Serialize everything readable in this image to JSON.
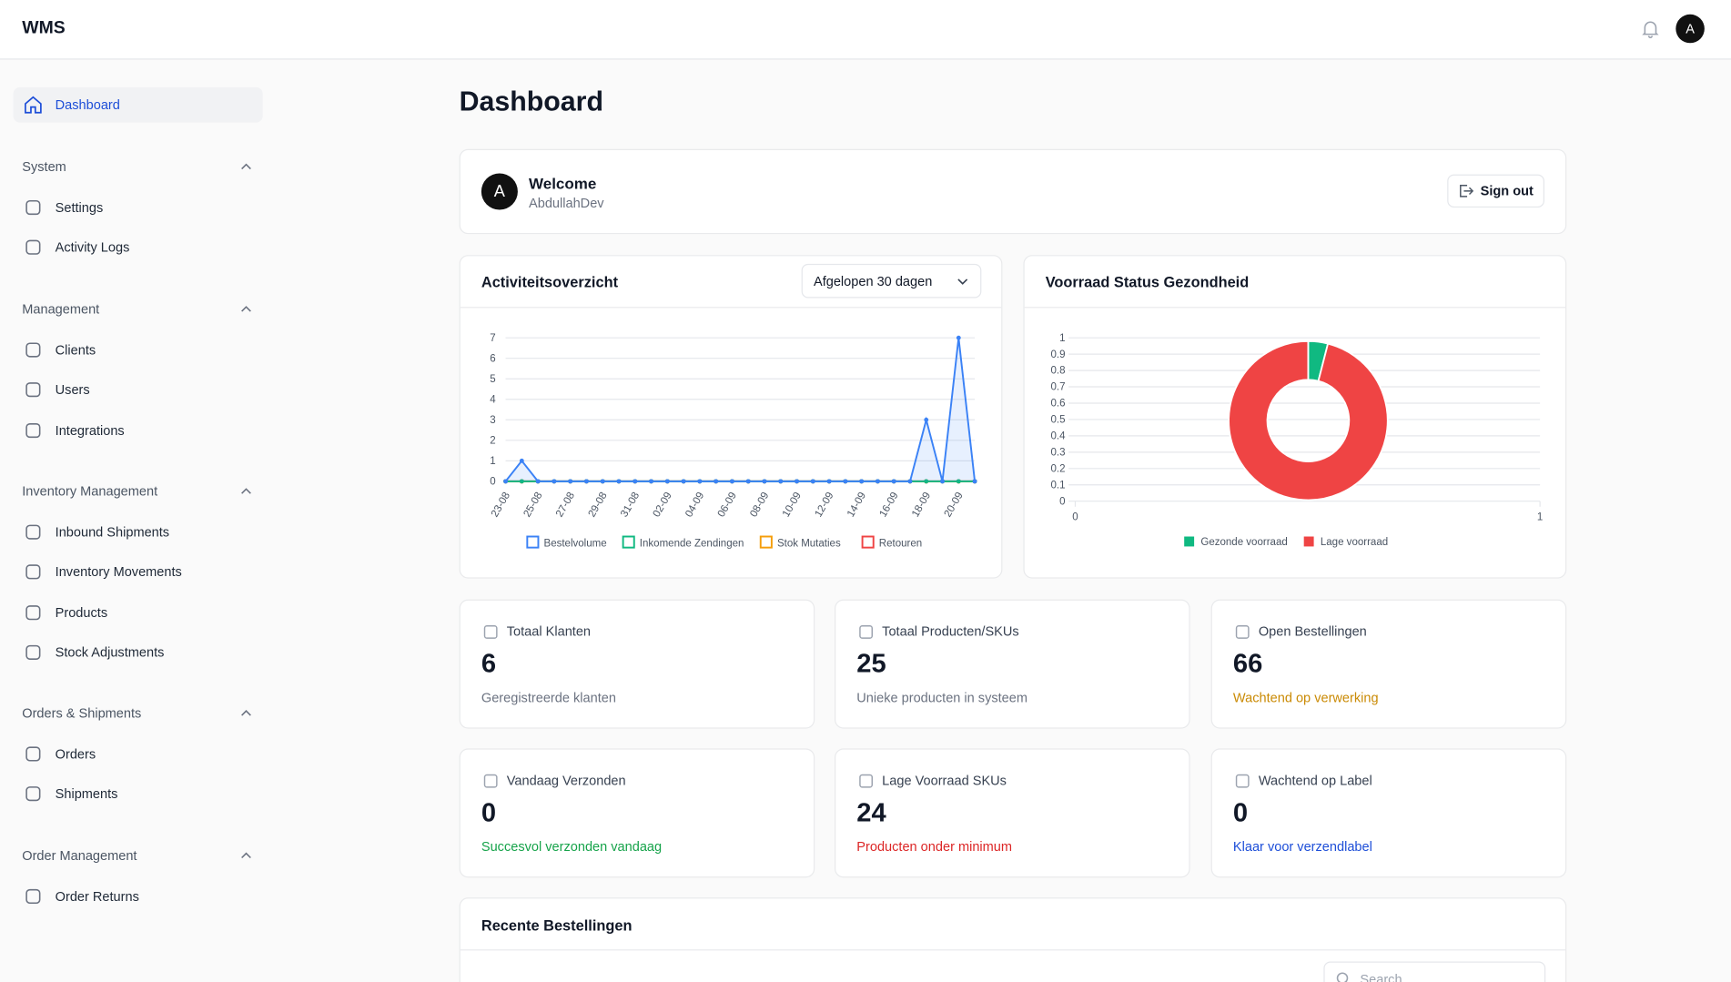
{
  "header": {
    "brand": "WMS",
    "avatar": "A"
  },
  "sidebar": {
    "active": "Dashboard",
    "groups": [
      {
        "title": "System",
        "items": [
          "Settings",
          "Activity Logs"
        ]
      },
      {
        "title": "Management",
        "items": [
          "Clients",
          "Users",
          "Integrations"
        ]
      },
      {
        "title": "Inventory Management",
        "items": [
          "Inbound Shipments",
          "Inventory Movements",
          "Products",
          "Stock Adjustments"
        ]
      },
      {
        "title": "Orders & Shipments",
        "items": [
          "Orders",
          "Shipments"
        ]
      },
      {
        "title": "Order Management",
        "items": [
          "Order Returns"
        ]
      }
    ]
  },
  "page_title": "Dashboard",
  "welcome": {
    "avatar": "A",
    "title": "Welcome",
    "user": "AbdullahDev",
    "button": "Sign out"
  },
  "chart_data": [
    {
      "type": "line",
      "title": "Activiteitsoverzicht",
      "range_select": "Afgelopen 30 dagen",
      "categories": [
        "23-08",
        null,
        "25-08",
        null,
        "27-08",
        null,
        "29-08",
        null,
        "31-08",
        null,
        "02-09",
        null,
        "04-09",
        null,
        "06-09",
        null,
        "08-09",
        null,
        "10-09",
        null,
        "12-09",
        null,
        "14-09",
        null,
        "16-09",
        null,
        "18-09",
        null,
        "20-09",
        null
      ],
      "series": [
        {
          "name": "Bestelvolume",
          "color": "#3b82f6",
          "area": true,
          "values": [
            0,
            1,
            0,
            0,
            0,
            0,
            0,
            0,
            0,
            0,
            0,
            0,
            0,
            0,
            0,
            0,
            0,
            0,
            0,
            0,
            0,
            0,
            0,
            0,
            0,
            0,
            3,
            0,
            7,
            0
          ]
        },
        {
          "name": "Inkomende Zendingen",
          "color": "#10b981",
          "values": [
            0,
            0,
            0,
            0,
            0,
            0,
            0,
            0,
            0,
            0,
            0,
            0,
            0,
            0,
            0,
            0,
            0,
            0,
            0,
            0,
            0,
            0,
            0,
            0,
            0,
            0,
            0,
            0,
            0,
            0
          ]
        },
        {
          "name": "Stok Mutaties",
          "color": "#f59e0b",
          "values": [
            0,
            0,
            0,
            0,
            0,
            0,
            0,
            0,
            0,
            0,
            0,
            0,
            0,
            0,
            0,
            0,
            0,
            0,
            0,
            0,
            0,
            0,
            0,
            0,
            0,
            0,
            0,
            0,
            0,
            0
          ]
        },
        {
          "name": "Retouren",
          "color": "#ef4444",
          "values": [
            0,
            0,
            0,
            0,
            0,
            0,
            0,
            0,
            0,
            0,
            0,
            0,
            0,
            0,
            0,
            0,
            0,
            0,
            0,
            0,
            0,
            0,
            0,
            0,
            0,
            0,
            0,
            0,
            0,
            0
          ]
        }
      ],
      "ylim": [
        0,
        7
      ],
      "yticks": [
        0,
        1,
        2,
        3,
        4,
        5,
        6,
        7
      ],
      "grid": true,
      "legend": "bottom"
    },
    {
      "type": "doughnut",
      "title": "Voorraad Status Gezondheid",
      "categories": [
        "Gezonde voorraad",
        "Lage voorraad"
      ],
      "values": [
        1,
        24
      ],
      "colors": [
        "#10b981",
        "#ef4444"
      ],
      "xlim": [
        0,
        1
      ],
      "xticks": [
        0,
        1
      ],
      "ylim": [
        0,
        1
      ],
      "yticks": [
        0,
        0.1,
        0.2,
        0.3,
        0.4,
        0.5,
        0.6,
        0.7,
        0.8,
        0.9,
        1
      ],
      "grid": true,
      "legend": "bottom"
    }
  ],
  "stats": [
    {
      "label": "Totaal Klanten",
      "value": 6,
      "note": "Geregistreerde klanten",
      "color": "#6b7280"
    },
    {
      "label": "Totaal Producten/SKUs",
      "value": 25,
      "note": "Unieke producten in systeem",
      "color": "#6b7280"
    },
    {
      "label": "Open Bestellingen",
      "value": 66,
      "note": "Wachtend op verwerking",
      "color": "#ca8a04"
    },
    {
      "label": "Vandaag Verzonden",
      "value": 0,
      "note": "Succesvol verzonden vandaag",
      "color": "#16a34a"
    },
    {
      "label": "Lage Voorraad SKUs",
      "value": 24,
      "note": "Producten onder minimum",
      "color": "#dc2626"
    },
    {
      "label": "Wachtend op Label",
      "value": 0,
      "note": "Klaar voor verzendlabel",
      "color": "#1d4ed8"
    }
  ],
  "recent": {
    "title": "Recente Bestellingen",
    "search_placeholder": "Search"
  }
}
